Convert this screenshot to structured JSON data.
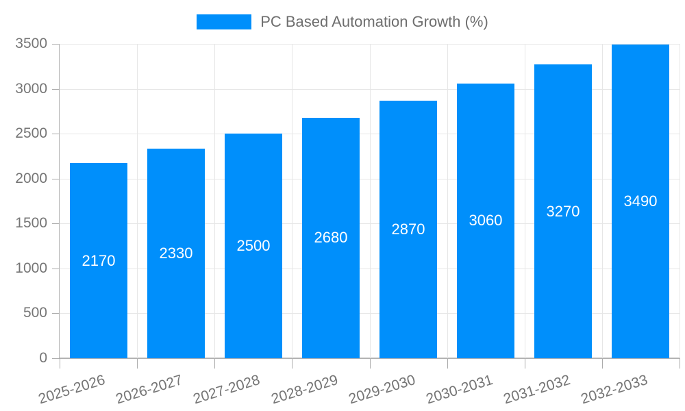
{
  "legend": {
    "label": "PC Based Automation Growth (%)"
  },
  "chart_data": {
    "type": "bar",
    "title": "PC Based Automation Growth (%)",
    "series_name": "PC Based Automation Growth (%)",
    "categories": [
      "2025-2026",
      "2026-2027",
      "2027-2028",
      "2028-2029",
      "2029-2030",
      "2030-2031",
      "2031-2032",
      "2032-2033"
    ],
    "values": [
      2170,
      2330,
      2500,
      2680,
      2870,
      3060,
      3270,
      3490
    ],
    "bar_value_labels": [
      "2170",
      "2330",
      "2500",
      "2680",
      "2870",
      "3060",
      "3270",
      "3490"
    ],
    "xlabel": "",
    "ylabel": "",
    "ylim": [
      0,
      3500
    ],
    "yticks": [
      0,
      500,
      1000,
      1500,
      2000,
      2500,
      3000,
      3500
    ],
    "ytick_labels": [
      "0",
      "500",
      "1000",
      "1500",
      "2000",
      "2500",
      "3000",
      "3500"
    ],
    "legend_position": "top",
    "grid": true,
    "colors": {
      "bar": "#008FFB",
      "bar_label": "#FFFFFF",
      "axis_text": "#757575",
      "legend_text": "#6E6E6E",
      "gridline": "#E6E6E6",
      "axis_line": "#B3B3B3",
      "tick": "#ABABAB",
      "background": "#FFFFFF"
    }
  }
}
